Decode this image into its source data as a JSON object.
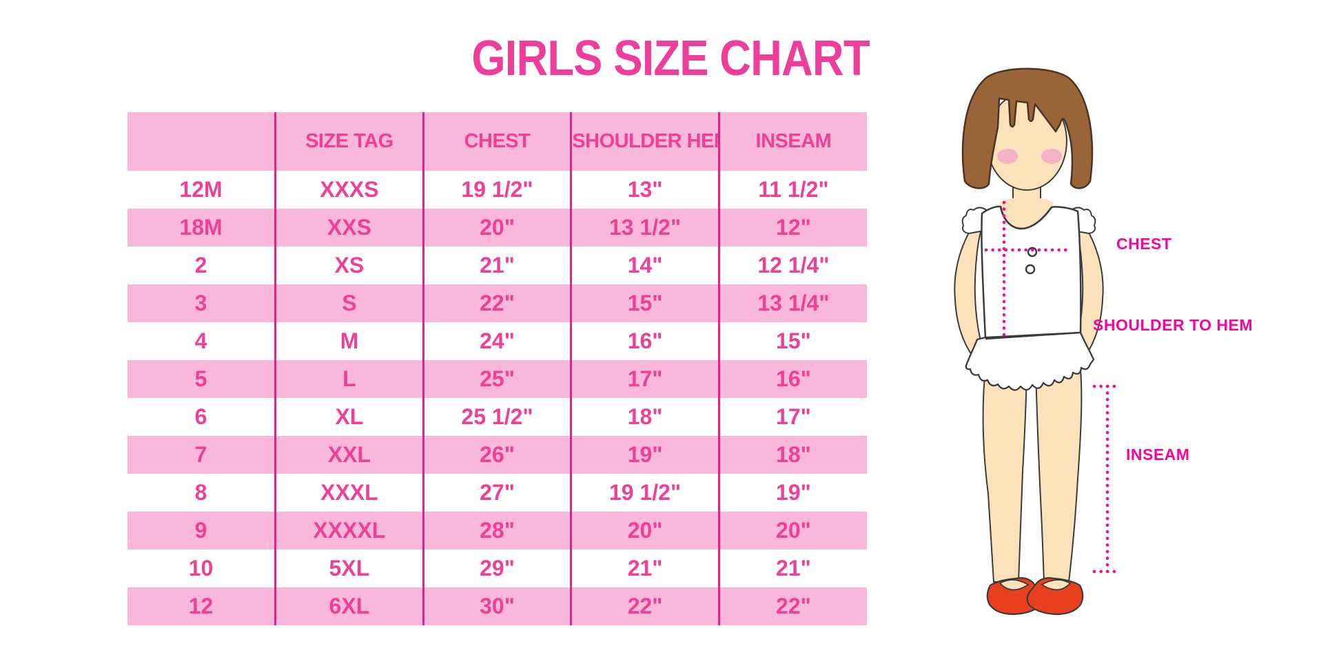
{
  "title": "GIRLS SIZE CHART",
  "chart_data": {
    "type": "table",
    "title": "GIRLS SIZE CHART",
    "columns": [
      "",
      "SIZE TAG",
      "CHEST",
      "SHOULDER HEM",
      "INSEAM"
    ],
    "rows": [
      [
        "12M",
        "XXXS",
        "19 1/2\"",
        "13\"",
        "11 1/2\""
      ],
      [
        "18M",
        "XXS",
        "20\"",
        "13 1/2\"",
        "12\""
      ],
      [
        "2",
        "XS",
        "21\"",
        "14\"",
        "12 1/4\""
      ],
      [
        "3",
        "S",
        "22\"",
        "15\"",
        "13 1/4\""
      ],
      [
        "4",
        "M",
        "24\"",
        "16\"",
        "15\""
      ],
      [
        "5",
        "L",
        "25\"",
        "17\"",
        "16\""
      ],
      [
        "6",
        "XL",
        "25 1/2\"",
        "18\"",
        "17\""
      ],
      [
        "7",
        "XXL",
        "26\"",
        "19\"",
        "18\""
      ],
      [
        "8",
        "XXXL",
        "27\"",
        "19 1/2\"",
        "19\""
      ],
      [
        "9",
        "XXXXL",
        "28\"",
        "20\"",
        "20\""
      ],
      [
        "10",
        "5XL",
        "29\"",
        "21\"",
        "21\""
      ],
      [
        "12",
        "6XL",
        "30\"",
        "22\"",
        "22\""
      ]
    ]
  },
  "figure": {
    "chest_label": "CHEST",
    "shoulder_to_hem_label": "SHOULDER TO HEM",
    "inseam_label": "INSEAM"
  },
  "colors": {
    "title_pink": "#EE3E9C",
    "table_text_pink": "#EE4097",
    "row_pink": "#F9B7DA",
    "grid_line_magenta": "#E3218A",
    "label_magenta": "#F5069E",
    "dotted_line_magenta": "#F20D99",
    "hair_brown": "#9A6439",
    "skin": "#FBE2BB",
    "blush_pink": "#F2A9C7",
    "shoe_red": "#E8401F"
  }
}
